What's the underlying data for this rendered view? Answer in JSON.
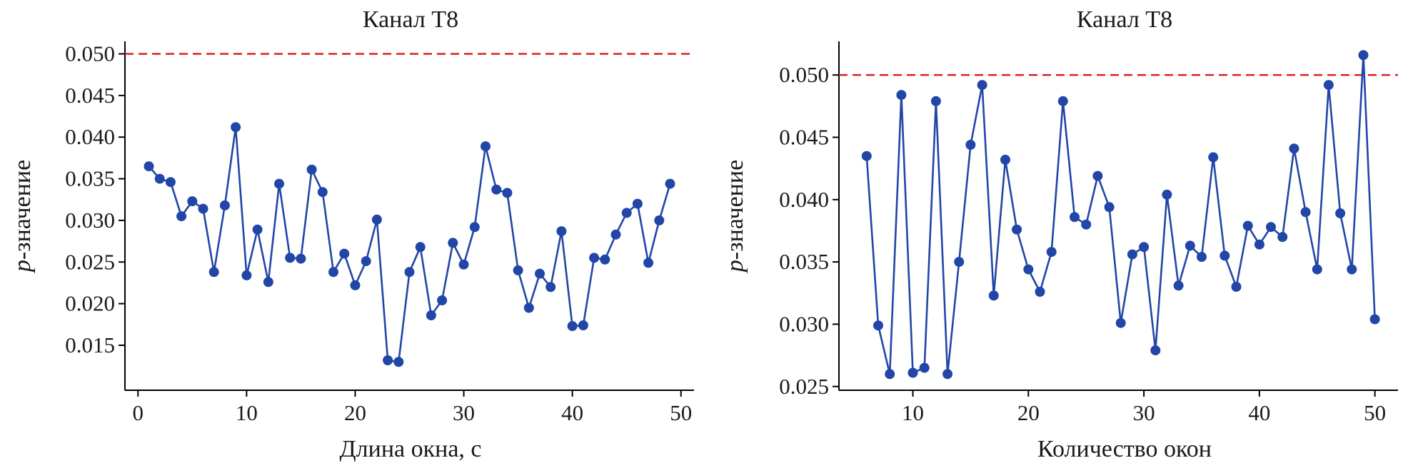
{
  "colors": {
    "series": "#2146a8",
    "reference": "#e02020",
    "axis": "#000000"
  },
  "chart_data": [
    {
      "type": "line",
      "title": "Канал T8",
      "xlabel": "Длина окна, с",
      "ylabel_italic": "p",
      "ylabel_rest": "-значение",
      "xlim": [
        -1.2,
        51.2
      ],
      "ylim": [
        0.0096,
        0.0515
      ],
      "xticks": [
        0,
        10,
        20,
        30,
        40,
        50
      ],
      "xtick_labels": [
        "0",
        "10",
        "20",
        "30",
        "40",
        "50"
      ],
      "yticks": [
        0.015,
        0.02,
        0.025,
        0.03,
        0.035,
        0.04,
        0.045,
        0.05
      ],
      "ytick_labels": [
        "0.015",
        "0.020",
        "0.025",
        "0.030",
        "0.035",
        "0.040",
        "0.045",
        "0.050"
      ],
      "reference_line": 0.05,
      "x": [
        1,
        2,
        3,
        4,
        5,
        6,
        7,
        8,
        9,
        10,
        11,
        12,
        13,
        14,
        15,
        16,
        17,
        18,
        19,
        20,
        21,
        22,
        23,
        24,
        25,
        26,
        27,
        28,
        29,
        30,
        31,
        32,
        33,
        34,
        35,
        36,
        37,
        38,
        39,
        40,
        41,
        42,
        43,
        44,
        45,
        46,
        47,
        48,
        49
      ],
      "y": [
        0.0365,
        0.035,
        0.0346,
        0.0305,
        0.0323,
        0.0314,
        0.0238,
        0.0318,
        0.0412,
        0.0234,
        0.0289,
        0.0226,
        0.0344,
        0.0255,
        0.0254,
        0.0361,
        0.0334,
        0.0238,
        0.026,
        0.0222,
        0.0251,
        0.0301,
        0.0132,
        0.013,
        0.0238,
        0.0268,
        0.0186,
        0.0204,
        0.0273,
        0.0247,
        0.0292,
        0.0389,
        0.0337,
        0.0333,
        0.024,
        0.0195,
        0.0236,
        0.022,
        0.0287,
        0.0173,
        0.0174,
        0.0255,
        0.0253,
        0.0283,
        0.0309,
        0.032,
        0.0249,
        0.03,
        0.0344
      ]
    },
    {
      "type": "line",
      "title": "Канал T8",
      "xlabel": "Количество окон",
      "ylabel_italic": "p",
      "ylabel_rest": "-значение",
      "xlim": [
        3.6,
        52.0
      ],
      "ylim": [
        0.0247,
        0.0527
      ],
      "xticks": [
        10,
        20,
        30,
        40,
        50
      ],
      "xtick_labels": [
        "10",
        "20",
        "30",
        "40",
        "50"
      ],
      "yticks": [
        0.025,
        0.03,
        0.035,
        0.04,
        0.045,
        0.05
      ],
      "ytick_labels": [
        "0.025",
        "0.030",
        "0.035",
        "0.040",
        "0.045",
        "0.050"
      ],
      "reference_line": 0.05,
      "x": [
        6,
        7,
        8,
        9,
        10,
        11,
        12,
        13,
        14,
        15,
        16,
        17,
        18,
        19,
        20,
        21,
        22,
        23,
        24,
        25,
        26,
        27,
        28,
        29,
        30,
        31,
        32,
        33,
        34,
        35,
        36,
        37,
        38,
        39,
        40,
        41,
        42,
        43,
        44,
        45,
        46,
        47,
        48,
        49,
        50
      ],
      "y": [
        0.0435,
        0.0299,
        0.026,
        0.0484,
        0.0261,
        0.0265,
        0.0479,
        0.026,
        0.035,
        0.0444,
        0.0492,
        0.0323,
        0.0432,
        0.0376,
        0.0344,
        0.0326,
        0.0358,
        0.0479,
        0.0386,
        0.038,
        0.0419,
        0.0394,
        0.0301,
        0.0356,
        0.0362,
        0.0279,
        0.0404,
        0.0331,
        0.0363,
        0.0354,
        0.0434,
        0.0355,
        0.033,
        0.0379,
        0.0364,
        0.0378,
        0.037,
        0.0441,
        0.039,
        0.0344,
        0.0492,
        0.0389,
        0.0344,
        0.0516,
        0.0304
      ]
    }
  ]
}
